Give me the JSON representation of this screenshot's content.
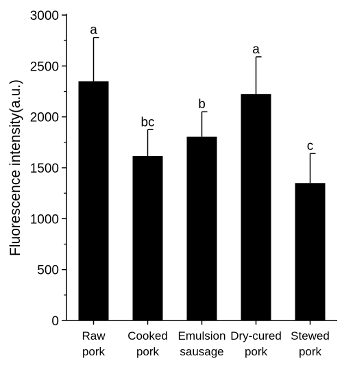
{
  "chart_data": {
    "type": "bar",
    "title": "",
    "xlabel": "",
    "ylabel": "Fluorescence intensity(a.u.)",
    "ylim": [
      0,
      3000
    ],
    "y_ticks": [
      "0",
      "500",
      "1000",
      "1500",
      "2000",
      "2500",
      "3000"
    ],
    "categories": [
      [
        "Raw",
        "pork"
      ],
      [
        "Cooked",
        "pork"
      ],
      [
        "Emulsion",
        "sausage"
      ],
      [
        "Dry-cured",
        "pork"
      ],
      [
        "Stewed",
        "pork"
      ]
    ],
    "values": [
      2350,
      1615,
      1805,
      2225,
      1350
    ],
    "errors": [
      430,
      260,
      245,
      365,
      290
    ],
    "significance": [
      "a",
      "bc",
      "b",
      "a",
      "c"
    ],
    "bar_color": "#000000",
    "grid": false,
    "legend": false
  }
}
